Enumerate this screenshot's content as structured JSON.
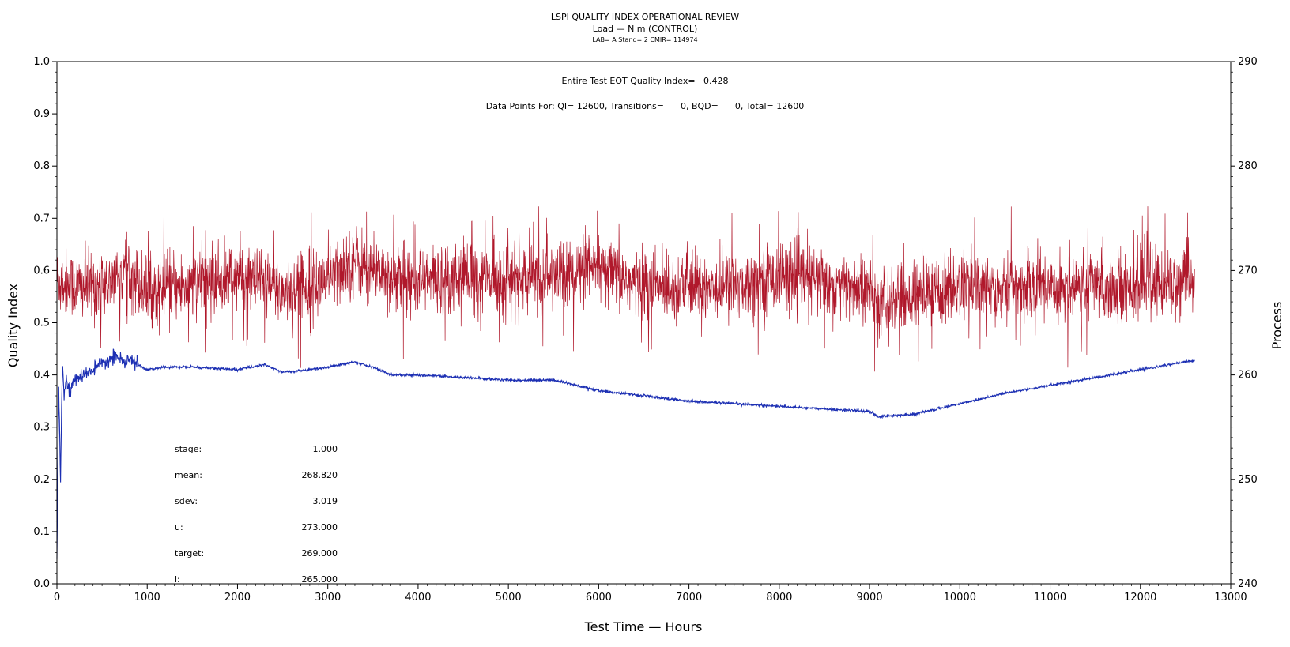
{
  "chart_data": {
    "type": "line",
    "title": "LSPI QUALITY INDEX OPERATIONAL REVIEW",
    "subtitle": "Load — N m (CONTROL)",
    "subtitle2": "LAB= A Stand= 2 CMIR= 114974",
    "annotation_eot": "Entire Test EOT Quality Index=   0.428",
    "annotation_points": "Data Points For: QI= 12600, Transitions=      0, BQD=      0, Total= 12600",
    "xlabel": "Test Time — Hours",
    "ylabel_left": "Quality Index",
    "ylabel_right": "Process",
    "xlim": [
      0,
      13000
    ],
    "ylim_left": [
      0.0,
      1.0
    ],
    "ylim_right": [
      240,
      290
    ],
    "x_ticks": [
      "0",
      "1000",
      "2000",
      "3000",
      "4000",
      "5000",
      "6000",
      "7000",
      "8000",
      "9000",
      "10000",
      "11000",
      "12000",
      "13000"
    ],
    "y_left_ticks": [
      "0.0",
      "0.1",
      "0.2",
      "0.3",
      "0.4",
      "0.5",
      "0.6",
      "0.7",
      "0.8",
      "0.9",
      "1.0"
    ],
    "y_right_ticks": [
      "240",
      "250",
      "260",
      "270",
      "280",
      "290"
    ],
    "stats": [
      {
        "label": "stage:",
        "value": "1.000"
      },
      {
        "label": "mean:",
        "value": "268.820"
      },
      {
        "label": "sdev:",
        "value": "3.019"
      },
      {
        "label": "u:",
        "value": "273.000"
      },
      {
        "label": "target:",
        "value": "269.000"
      },
      {
        "label": "l:",
        "value": "265.000"
      }
    ],
    "series": [
      {
        "axis": "right",
        "color": "#b0182b",
        "style": "dense-noise",
        "x": [
          0,
          200,
          500,
          800,
          1000,
          1500,
          2000,
          2500,
          3000,
          3300,
          3500,
          4000,
          4500,
          5000,
          5500,
          6000,
          6500,
          7000,
          7500,
          8000,
          8500,
          9000,
          9100,
          9500,
          10000,
          10500,
          11000,
          11500,
          12000,
          12600
        ],
        "y": [
          269,
          268.5,
          268.5,
          270,
          268,
          268.5,
          269.5,
          268,
          269,
          271,
          270,
          269,
          269.5,
          269,
          269.5,
          270,
          268.5,
          268.5,
          268.5,
          269.5,
          269,
          268,
          266.5,
          267.5,
          268.5,
          268.5,
          268.5,
          268.5,
          268.5,
          269
        ],
        "amplitude": 3.0
      },
      {
        "axis": "left",
        "color": "#1c2fb3",
        "style": "line",
        "x": [
          0,
          20,
          40,
          60,
          80,
          100,
          150,
          200,
          300,
          400,
          500,
          600,
          650,
          700,
          750,
          800,
          900,
          1000,
          1200,
          1500,
          2000,
          2300,
          2500,
          2800,
          3000,
          3300,
          3500,
          3700,
          4000,
          4500,
          5000,
          5500,
          6000,
          6500,
          7000,
          7500,
          8000,
          8500,
          9000,
          9100,
          9500,
          10000,
          10500,
          11000,
          11500,
          12000,
          12600
        ],
        "y": [
          0.06,
          0.38,
          0.2,
          0.43,
          0.36,
          0.39,
          0.37,
          0.39,
          0.4,
          0.41,
          0.42,
          0.43,
          0.44,
          0.43,
          0.42,
          0.43,
          0.42,
          0.41,
          0.415,
          0.415,
          0.41,
          0.42,
          0.405,
          0.41,
          0.415,
          0.425,
          0.415,
          0.4,
          0.4,
          0.395,
          0.39,
          0.39,
          0.37,
          0.36,
          0.35,
          0.345,
          0.34,
          0.335,
          0.33,
          0.32,
          0.325,
          0.345,
          0.365,
          0.38,
          0.395,
          0.41,
          0.428
        ]
      }
    ]
  }
}
